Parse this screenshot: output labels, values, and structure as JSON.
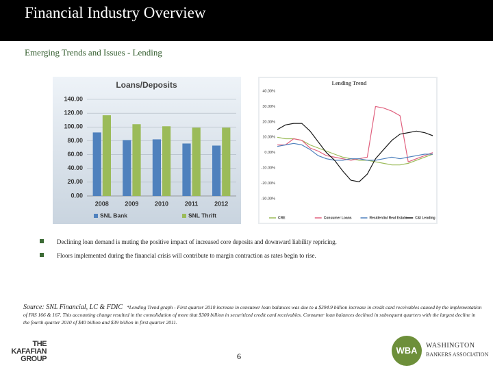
{
  "header": {
    "title": "Financial Industry Overview",
    "subtitle": "Emerging Trends and Issues - Lending"
  },
  "chart_data": [
    {
      "type": "bar",
      "title": "Loans/Deposits",
      "categories": [
        "2008",
        "2009",
        "2010",
        "2011",
        "2012"
      ],
      "series": [
        {
          "name": "SNL Bank",
          "color": "#4f81bd",
          "values": [
            92,
            81,
            82,
            76,
            73
          ]
        },
        {
          "name": "SNL Thrift",
          "color": "#9bbb59",
          "values": [
            117,
            104,
            101,
            99,
            99
          ]
        }
      ],
      "ylim": [
        0,
        140
      ],
      "yticks": [
        {
          "value": 0,
          "label": "0.00"
        },
        {
          "value": 20,
          "label": "20.00"
        },
        {
          "value": 40,
          "label": "40.00"
        },
        {
          "value": 60,
          "label": "60.00"
        },
        {
          "value": 80,
          "label": "80.00"
        },
        {
          "value": 100,
          "label": "100.00"
        },
        {
          "value": 120,
          "label": "120.00"
        },
        {
          "value": 140,
          "label": "140.00"
        }
      ],
      "grid": true,
      "legend": "bottom"
    },
    {
      "type": "line",
      "title": "Lending Trend",
      "categories": [
        null,
        null,
        null,
        null,
        null,
        null,
        null,
        null,
        null,
        null,
        null,
        null,
        null,
        null,
        null,
        null,
        null,
        null,
        null,
        null
      ],
      "series": [
        {
          "name": "CRE",
          "color": "#9bbb59",
          "values": [
            10,
            9,
            9,
            8,
            5,
            3,
            1,
            -1,
            -3,
            -4,
            -5,
            -5,
            -6,
            -7,
            -8,
            -8,
            -7,
            -5,
            -3,
            -1
          ]
        },
        {
          "name": "Consumer Loans",
          "color": "#e0607e",
          "values": [
            5,
            5,
            9,
            8,
            3,
            1,
            -2,
            -3,
            -4,
            -5,
            -4,
            -3,
            30,
            29,
            27,
            24,
            -6,
            -4,
            -2,
            0
          ]
        },
        {
          "name": "Residential Real Estate",
          "color": "#4f81bd",
          "values": [
            4,
            5,
            6,
            5,
            2,
            -2,
            -4,
            -5,
            -5,
            -4,
            -4,
            -5,
            -5,
            -4,
            -3,
            -4,
            -3,
            -2,
            -1,
            -1
          ]
        },
        {
          "name": "C&I Lending",
          "color": "#1a1a1a",
          "values": [
            15,
            18,
            19,
            19,
            14,
            7,
            0,
            -5,
            -12,
            -18,
            -19,
            -14,
            -4,
            2,
            8,
            12,
            13,
            14,
            13,
            11
          ]
        }
      ],
      "ylim": [
        -30,
        40
      ],
      "yticks": [
        {
          "value": 40,
          "label": "40.00%"
        },
        {
          "value": 30,
          "label": "30.00%"
        },
        {
          "value": 20,
          "label": "20.00%"
        },
        {
          "value": 10,
          "label": "10.00%"
        },
        {
          "value": 0,
          "label": "0.00%"
        },
        {
          "value": -10,
          "label": "-10.00%"
        },
        {
          "value": -20,
          "label": "-20.00%"
        },
        {
          "value": -30,
          "label": "-30.00%"
        }
      ],
      "grid": false,
      "legend": "bottom"
    }
  ],
  "bullets": [
    "Declining loan demand is muting the positive impact of increased core deposits and downward liability repricing.",
    "Floors implemented during the financial crisis will contribute to margin contraction as rates begin to rise."
  ],
  "source": {
    "label": "Source: SNL Financial, LC & FDIC",
    "note": "*Lending Trend graph - First quarter 2010 increase in consumer loan balances was due to a $394.9 billion increase in credit card receivables caused by the implementation of FAS 166 & 167. This accounting change resulted in the consolidation of more that $300 billion in securitized credit card receivables. Consumer loan balances declined in subsequent quarters with the largest decline in the fourth quarter 2010 of $40 billion and $39 billion in first quarter 2011."
  },
  "footer": {
    "page": "6",
    "left_logo": [
      "THE",
      "KAFAFIAN",
      "GROUP"
    ],
    "right_logo": {
      "mark": "WBA",
      "line1": "WASHINGTON",
      "line2": "BANKERS ASSOCIATION"
    }
  }
}
